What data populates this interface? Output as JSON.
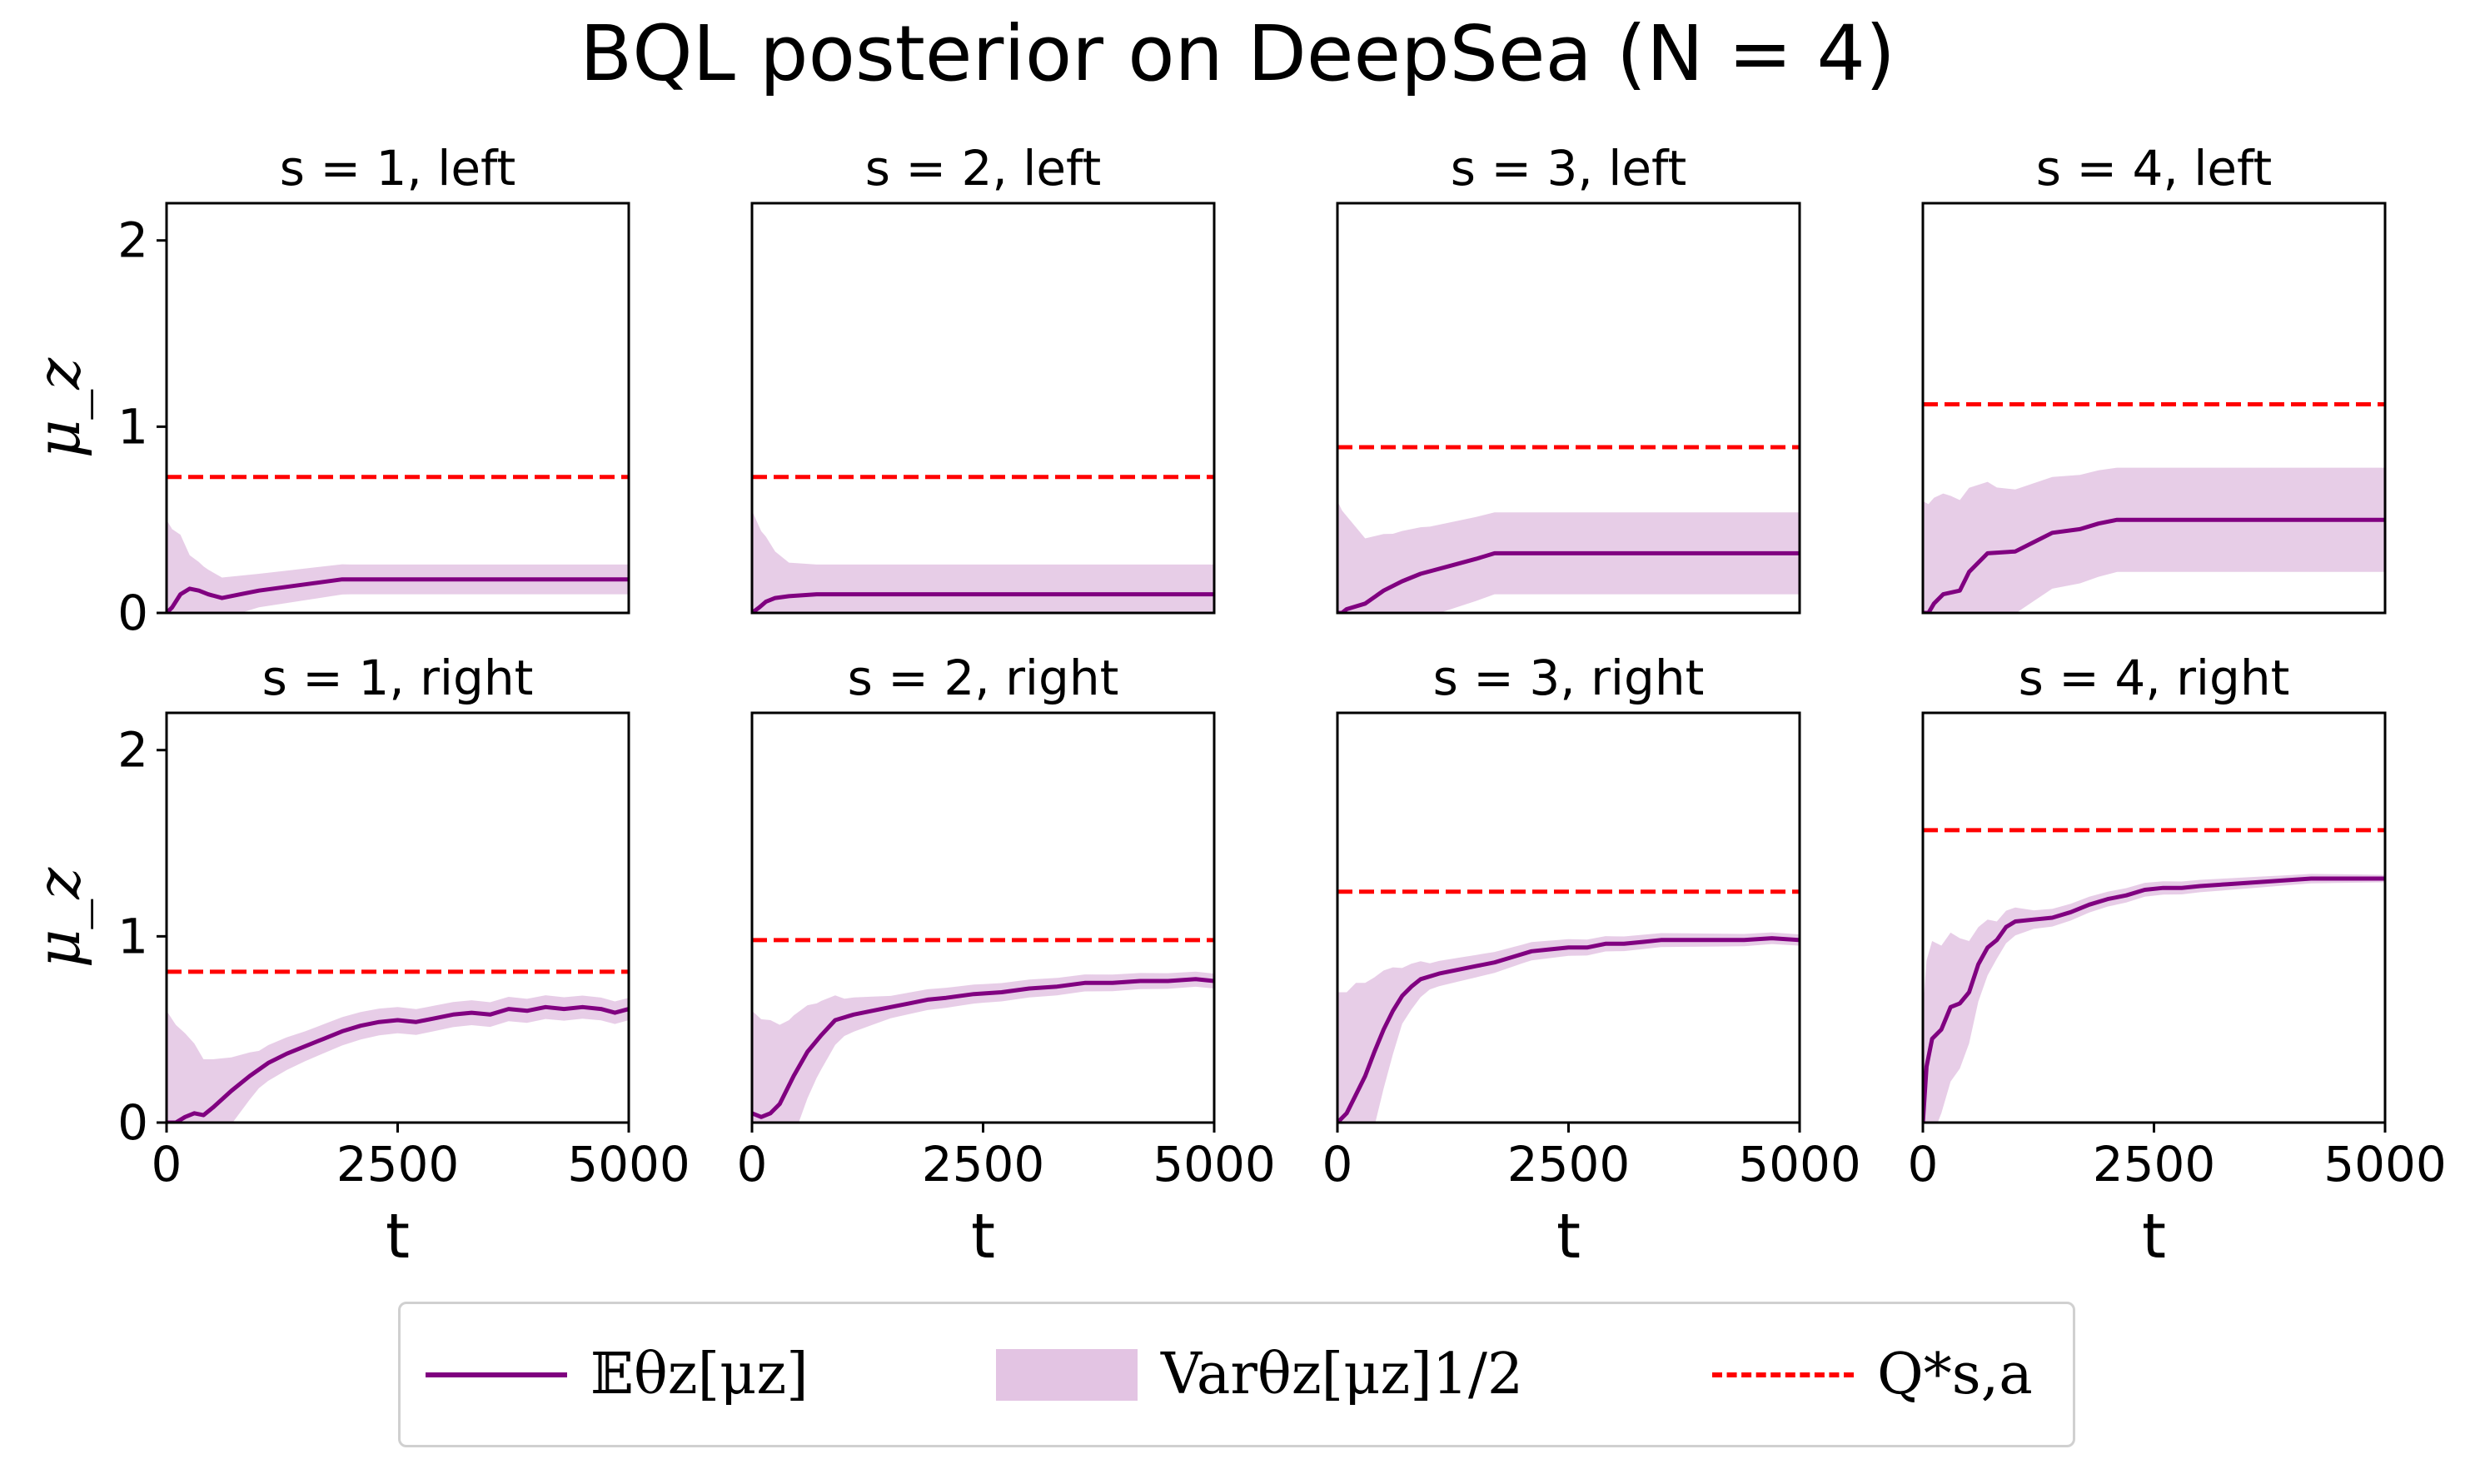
{
  "figure": {
    "title": "BQL posterior on DeepSea (N = 4)",
    "colors": {
      "mean": "#800080",
      "band": "#E3C4E3",
      "qstar": "#FF0000"
    }
  },
  "chart_data": {
    "type": "line",
    "title": "BQL posterior on DeepSea (N = 4)",
    "layout": "2x4 grid, shared axes",
    "xlabel": "t",
    "ylabel": "μ_z",
    "xlim": [
      0,
      5000
    ],
    "ylim": [
      0,
      2.2
    ],
    "xticks": [
      "0",
      "2500",
      "5000"
    ],
    "yticks": [
      "0",
      "1",
      "2"
    ],
    "grid": false,
    "legend": {
      "placement": "bottom-center",
      "entries": [
        {
          "label": "𝔼θz[μz]",
          "style": "solid",
          "color": "#800080"
        },
        {
          "label": "Varθz[μz]1/2",
          "style": "band",
          "color": "#E3C4E3"
        },
        {
          "label": "Q*s,a",
          "style": "dashed",
          "color": "#FF0000"
        }
      ]
    },
    "panels": [
      {
        "title": "s = 1, left",
        "q_star": 0.73,
        "mean": [
          [
            0,
            0
          ],
          [
            60,
            0.03
          ],
          [
            150,
            0.1
          ],
          [
            250,
            0.13
          ],
          [
            350,
            0.12
          ],
          [
            450,
            0.1
          ],
          [
            600,
            0.08
          ],
          [
            800,
            0.1
          ],
          [
            1000,
            0.12
          ],
          [
            1300,
            0.14
          ],
          [
            1600,
            0.16
          ],
          [
            1900,
            0.18
          ],
          [
            2500,
            0.18
          ],
          [
            5000,
            0.18
          ]
        ],
        "sd": [
          [
            0,
            0.5
          ],
          [
            60,
            0.42
          ],
          [
            150,
            0.32
          ],
          [
            250,
            0.18
          ],
          [
            400,
            0.14
          ],
          [
            600,
            0.11
          ],
          [
            1000,
            0.09
          ],
          [
            2000,
            0.08
          ],
          [
            5000,
            0.08
          ]
        ]
      },
      {
        "title": "s = 2, left",
        "q_star": 0.73,
        "mean": [
          [
            0,
            0
          ],
          [
            80,
            0.03
          ],
          [
            150,
            0.06
          ],
          [
            250,
            0.08
          ],
          [
            400,
            0.09
          ],
          [
            700,
            0.1
          ],
          [
            5000,
            0.1
          ]
        ],
        "sd": [
          [
            0,
            0.55
          ],
          [
            100,
            0.4
          ],
          [
            250,
            0.25
          ],
          [
            400,
            0.18
          ],
          [
            700,
            0.16
          ],
          [
            5000,
            0.16
          ]
        ]
      },
      {
        "title": "s = 3, left",
        "q_star": 0.89,
        "mean": [
          [
            0,
            0
          ],
          [
            50,
            0
          ],
          [
            100,
            0.02
          ],
          [
            300,
            0.05
          ],
          [
            500,
            0.12
          ],
          [
            700,
            0.17
          ],
          [
            900,
            0.21
          ],
          [
            1200,
            0.25
          ],
          [
            1500,
            0.29
          ],
          [
            1700,
            0.32
          ],
          [
            5000,
            0.32
          ]
        ],
        "sd": [
          [
            0,
            0.6
          ],
          [
            100,
            0.5
          ],
          [
            300,
            0.35
          ],
          [
            600,
            0.28
          ],
          [
            1000,
            0.24
          ],
          [
            1700,
            0.22
          ],
          [
            5000,
            0.22
          ]
        ]
      },
      {
        "title": "s = 4, left",
        "q_star": 1.12,
        "mean": [
          [
            0,
            0
          ],
          [
            60,
            0
          ],
          [
            120,
            0.05
          ],
          [
            220,
            0.1
          ],
          [
            400,
            0.12
          ],
          [
            500,
            0.22
          ],
          [
            700,
            0.32
          ],
          [
            1000,
            0.33
          ],
          [
            1200,
            0.38
          ],
          [
            1400,
            0.43
          ],
          [
            1700,
            0.45
          ],
          [
            1900,
            0.48
          ],
          [
            2100,
            0.5
          ],
          [
            5000,
            0.5
          ]
        ],
        "sd": [
          [
            0,
            0.6
          ],
          [
            300,
            0.52
          ],
          [
            800,
            0.35
          ],
          [
            1400,
            0.3
          ],
          [
            2100,
            0.28
          ],
          [
            5000,
            0.28
          ]
        ]
      },
      {
        "title": "s = 1, right",
        "q_star": 0.81,
        "mean": [
          [
            0,
            0
          ],
          [
            100,
            0
          ],
          [
            200,
            0.03
          ],
          [
            300,
            0.05
          ],
          [
            400,
            0.04
          ],
          [
            500,
            0.08
          ],
          [
            700,
            0.17
          ],
          [
            900,
            0.25
          ],
          [
            1100,
            0.32
          ],
          [
            1300,
            0.37
          ],
          [
            1500,
            0.41
          ],
          [
            1700,
            0.45
          ],
          [
            1900,
            0.49
          ],
          [
            2100,
            0.52
          ],
          [
            2300,
            0.54
          ],
          [
            2500,
            0.55
          ],
          [
            2700,
            0.54
          ],
          [
            2900,
            0.56
          ],
          [
            3100,
            0.58
          ],
          [
            3300,
            0.59
          ],
          [
            3500,
            0.58
          ],
          [
            3700,
            0.61
          ],
          [
            3900,
            0.6
          ],
          [
            4100,
            0.62
          ],
          [
            4300,
            0.61
          ],
          [
            4500,
            0.62
          ],
          [
            4700,
            0.61
          ],
          [
            4850,
            0.59
          ],
          [
            5000,
            0.61
          ]
        ],
        "sd": [
          [
            0,
            0.6
          ],
          [
            200,
            0.45
          ],
          [
            400,
            0.3
          ],
          [
            700,
            0.18
          ],
          [
            1000,
            0.1
          ],
          [
            1500,
            0.08
          ],
          [
            2500,
            0.07
          ],
          [
            5000,
            0.06
          ]
        ]
      },
      {
        "title": "s = 2, right",
        "q_star": 0.98,
        "mean": [
          [
            0,
            0.05
          ],
          [
            100,
            0.03
          ],
          [
            200,
            0.05
          ],
          [
            300,
            0.1
          ],
          [
            450,
            0.25
          ],
          [
            600,
            0.38
          ],
          [
            750,
            0.47
          ],
          [
            900,
            0.55
          ],
          [
            1100,
            0.58
          ],
          [
            1300,
            0.6
          ],
          [
            1500,
            0.62
          ],
          [
            1700,
            0.64
          ],
          [
            1900,
            0.66
          ],
          [
            2100,
            0.67
          ],
          [
            2400,
            0.69
          ],
          [
            2700,
            0.7
          ],
          [
            3000,
            0.72
          ],
          [
            3300,
            0.73
          ],
          [
            3600,
            0.75
          ],
          [
            3900,
            0.75
          ],
          [
            4200,
            0.76
          ],
          [
            4500,
            0.76
          ],
          [
            4800,
            0.77
          ],
          [
            5000,
            0.76
          ]
        ],
        "sd": [
          [
            0,
            0.55
          ],
          [
            200,
            0.5
          ],
          [
            400,
            0.35
          ],
          [
            700,
            0.2
          ],
          [
            1000,
            0.1
          ],
          [
            1500,
            0.06
          ],
          [
            2500,
            0.05
          ],
          [
            5000,
            0.04
          ]
        ]
      },
      {
        "title": "s = 3, right",
        "q_star": 1.24,
        "mean": [
          [
            0,
            0
          ],
          [
            100,
            0.05
          ],
          [
            200,
            0.15
          ],
          [
            300,
            0.25
          ],
          [
            400,
            0.38
          ],
          [
            500,
            0.5
          ],
          [
            600,
            0.6
          ],
          [
            700,
            0.68
          ],
          [
            800,
            0.73
          ],
          [
            900,
            0.77
          ],
          [
            1100,
            0.8
          ],
          [
            1300,
            0.82
          ],
          [
            1500,
            0.84
          ],
          [
            1700,
            0.86
          ],
          [
            1900,
            0.89
          ],
          [
            2100,
            0.92
          ],
          [
            2300,
            0.93
          ],
          [
            2500,
            0.94
          ],
          [
            2700,
            0.94
          ],
          [
            2900,
            0.96
          ],
          [
            3100,
            0.96
          ],
          [
            3300,
            0.97
          ],
          [
            3500,
            0.98
          ],
          [
            3800,
            0.98
          ],
          [
            4100,
            0.98
          ],
          [
            4400,
            0.98
          ],
          [
            4700,
            0.99
          ],
          [
            5000,
            0.98
          ]
        ],
        "sd": [
          [
            0,
            0.7
          ],
          [
            200,
            0.6
          ],
          [
            400,
            0.4
          ],
          [
            700,
            0.15
          ],
          [
            1000,
            0.07
          ],
          [
            2000,
            0.05
          ],
          [
            3000,
            0.04
          ],
          [
            5000,
            0.03
          ]
        ]
      },
      {
        "title": "s = 4, right",
        "q_star": 1.57,
        "mean": [
          [
            0,
            0
          ],
          [
            40,
            0.3
          ],
          [
            100,
            0.45
          ],
          [
            200,
            0.5
          ],
          [
            300,
            0.62
          ],
          [
            400,
            0.64
          ],
          [
            500,
            0.7
          ],
          [
            600,
            0.85
          ],
          [
            700,
            0.94
          ],
          [
            800,
            0.98
          ],
          [
            900,
            1.05
          ],
          [
            1000,
            1.08
          ],
          [
            1200,
            1.09
          ],
          [
            1400,
            1.1
          ],
          [
            1600,
            1.13
          ],
          [
            1800,
            1.17
          ],
          [
            2000,
            1.2
          ],
          [
            2200,
            1.22
          ],
          [
            2400,
            1.25
          ],
          [
            2600,
            1.26
          ],
          [
            2800,
            1.26
          ],
          [
            3000,
            1.27
          ],
          [
            3300,
            1.28
          ],
          [
            3600,
            1.29
          ],
          [
            3900,
            1.3
          ],
          [
            4200,
            1.31
          ],
          [
            4500,
            1.31
          ],
          [
            4800,
            1.31
          ],
          [
            5000,
            1.31
          ]
        ],
        "sd": [
          [
            0,
            0.6
          ],
          [
            200,
            0.45
          ],
          [
            400,
            0.35
          ],
          [
            600,
            0.2
          ],
          [
            800,
            0.1
          ],
          [
            1200,
            0.05
          ],
          [
            2000,
            0.04
          ],
          [
            5000,
            0.02
          ]
        ]
      }
    ]
  }
}
